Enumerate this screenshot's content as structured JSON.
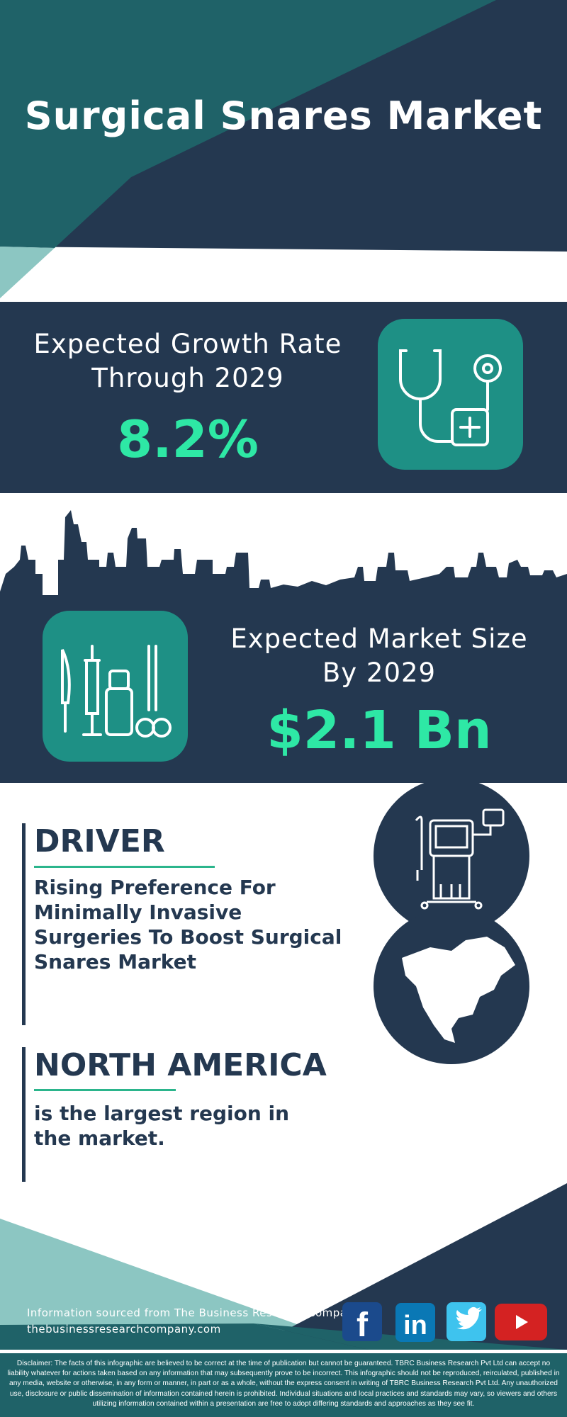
{
  "header": {
    "title": "Surgical Snares Market"
  },
  "growth": {
    "label": "Expected Growth Rate Through 2029",
    "value": "8.2%",
    "icon": "stethoscope-icon"
  },
  "market_size": {
    "label": "Expected Market Size By 2029",
    "value": "$2.1 Bn",
    "icon": "surgical-instruments-icon"
  },
  "driver": {
    "heading": "DRIVER",
    "text": "Rising Preference For Minimally Invasive Surgeries To Boost Surgical Snares Market",
    "icon": "medical-machine-icon"
  },
  "region": {
    "heading": "NORTH AMERICA",
    "text": "is the largest region in the market.",
    "icon": "north-america-map-icon"
  },
  "footer": {
    "source": "Information sourced from The Business Research Company",
    "website": "thebusinessresearchcompany.com",
    "social": [
      {
        "name": "facebook",
        "glyph": "f",
        "color": "#1b4a8c"
      },
      {
        "name": "linkedin",
        "glyph": "in",
        "color": "#0a78b5"
      },
      {
        "name": "twitter",
        "glyph": "t",
        "color": "#3ec3ee"
      },
      {
        "name": "youtube",
        "glyph": "▶",
        "color": "#d42222"
      }
    ]
  },
  "disclaimer": "Disclaimer: The facts of this infographic are believed to be correct at the time of publication but cannot be guaranteed. TBRC Business Research Pvt Ltd can accept no liability whatever for actions taken based on any information that may subsequently prove to be incorrect. This infographic should not be reproduced, reirculated, published in any media, website or otherwise, in any form or manner, in part or as a whole, without the express consent in writing of TBRC Business Research Pvt Ltd. Any unauthorized use, disclosure or public dissemination of information contained herein is prohibited. Individual situations and local practices and standards may vary, so viewers and others utilizing information contained within a presentation are free to adopt differing standards and approaches as they see fit.",
  "colors": {
    "navy": "#243850",
    "teal": "#1f6268",
    "light_teal": "#8cc6c2",
    "accent_green": "#2ee8a5",
    "icon_box": "#1e9085"
  }
}
